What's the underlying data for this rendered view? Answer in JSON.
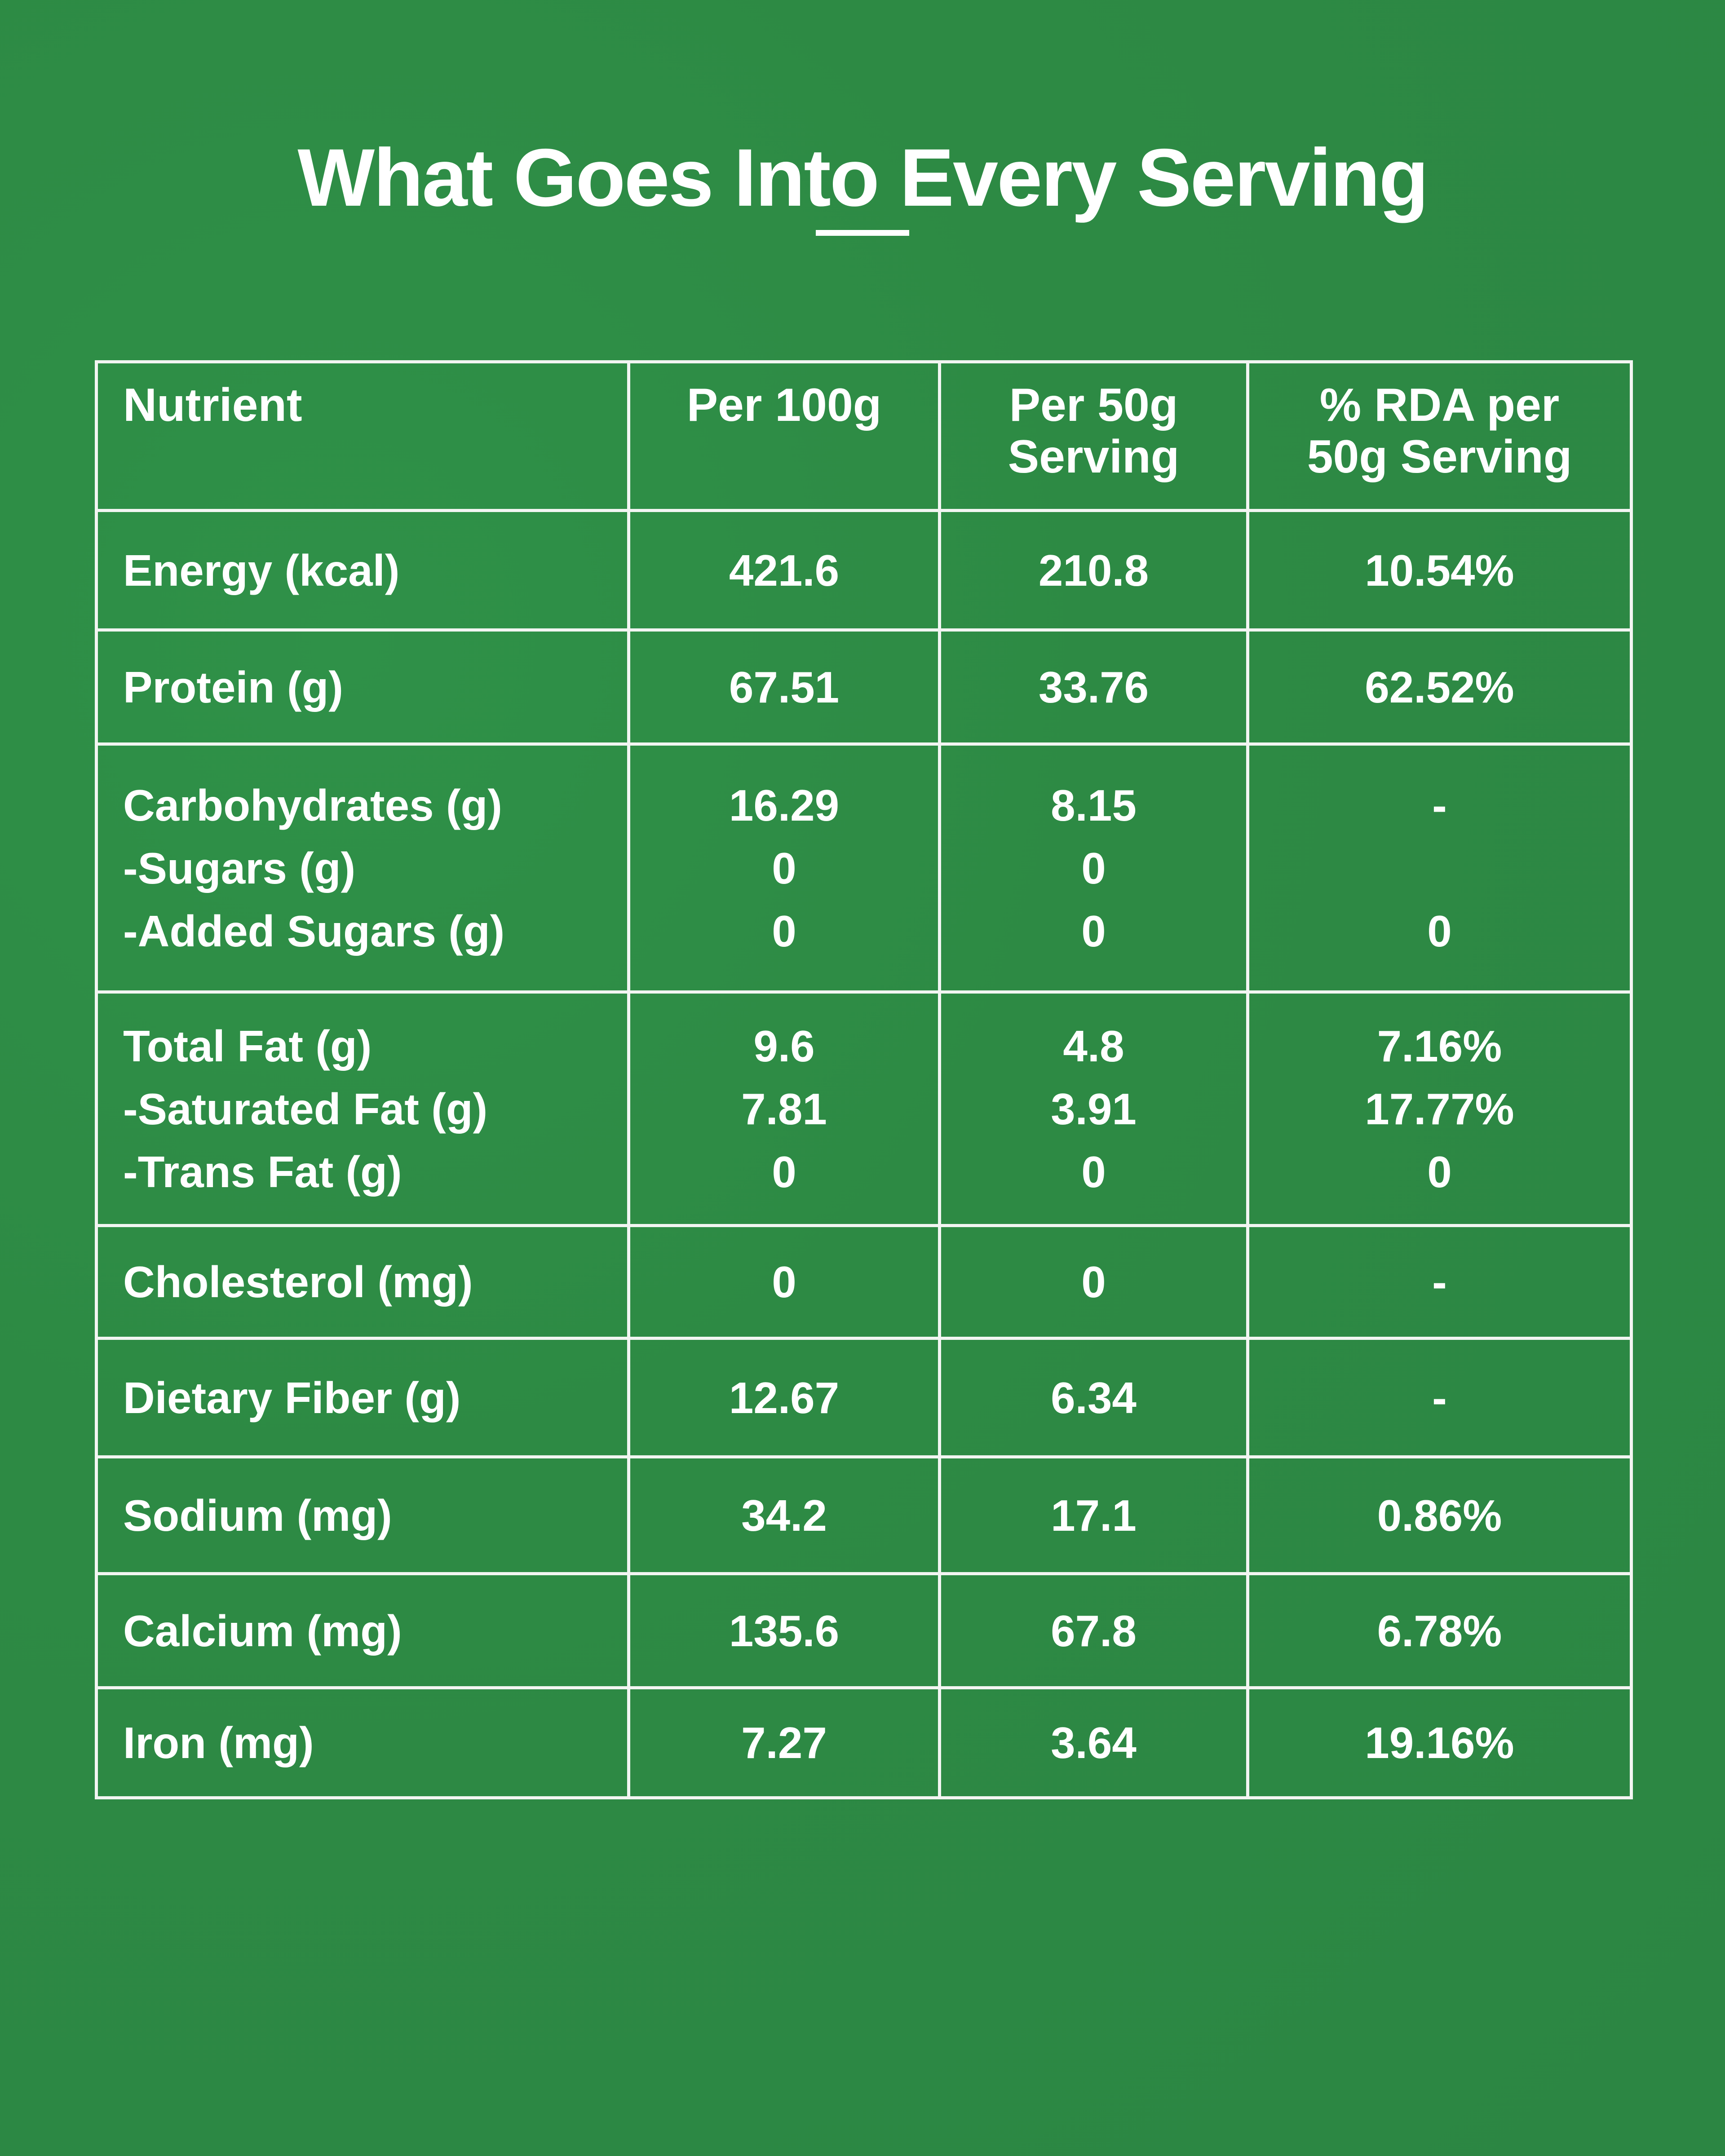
{
  "title": "What Goes Into Every Serving",
  "table": {
    "headers": [
      "Nutrient",
      "Per 100g",
      "Per 50g Serving",
      "% RDA per 50g Serving"
    ],
    "rows": [
      {
        "cells": [
          [
            "Energy (kcal)"
          ],
          [
            "421.6"
          ],
          [
            "210.8"
          ],
          [
            "10.54%"
          ]
        ]
      },
      {
        "cells": [
          [
            "Protein (g)"
          ],
          [
            "67.51"
          ],
          [
            "33.76"
          ],
          [
            "62.52%"
          ]
        ]
      },
      {
        "cells": [
          [
            "Carbohydrates (g)",
            "-Sugars (g)",
            "-Added Sugars (g)"
          ],
          [
            "16.29",
            "0",
            "0"
          ],
          [
            "8.15",
            "0",
            "0"
          ],
          [
            "-",
            "",
            "0"
          ]
        ]
      },
      {
        "cells": [
          [
            "Total Fat (g)",
            "-Saturated Fat (g)",
            "-Trans Fat (g)"
          ],
          [
            "9.6",
            "7.81",
            "0"
          ],
          [
            "4.8",
            "3.91",
            "0"
          ],
          [
            "7.16%",
            "17.77%",
            "0"
          ]
        ]
      },
      {
        "cells": [
          [
            "Cholesterol (mg)"
          ],
          [
            "0"
          ],
          [
            "0"
          ],
          [
            "-"
          ]
        ]
      },
      {
        "cells": [
          [
            "Dietary Fiber (g)"
          ],
          [
            "12.67"
          ],
          [
            "6.34"
          ],
          [
            "-"
          ]
        ]
      },
      {
        "cells": [
          [
            "Sodium (mg)"
          ],
          [
            "34.2"
          ],
          [
            "17.1"
          ],
          [
            "0.86%"
          ]
        ]
      },
      {
        "cells": [
          [
            "Calcium (mg)"
          ],
          [
            "135.6"
          ],
          [
            "67.8"
          ],
          [
            "6.78%"
          ]
        ]
      },
      {
        "cells": [
          [
            "Iron (mg)"
          ],
          [
            "7.27"
          ],
          [
            "3.64"
          ],
          [
            "19.16%"
          ]
        ]
      }
    ]
  },
  "colors": {
    "background": "#2d8a44",
    "text": "#ffffff",
    "border": "#f2f5f2"
  }
}
